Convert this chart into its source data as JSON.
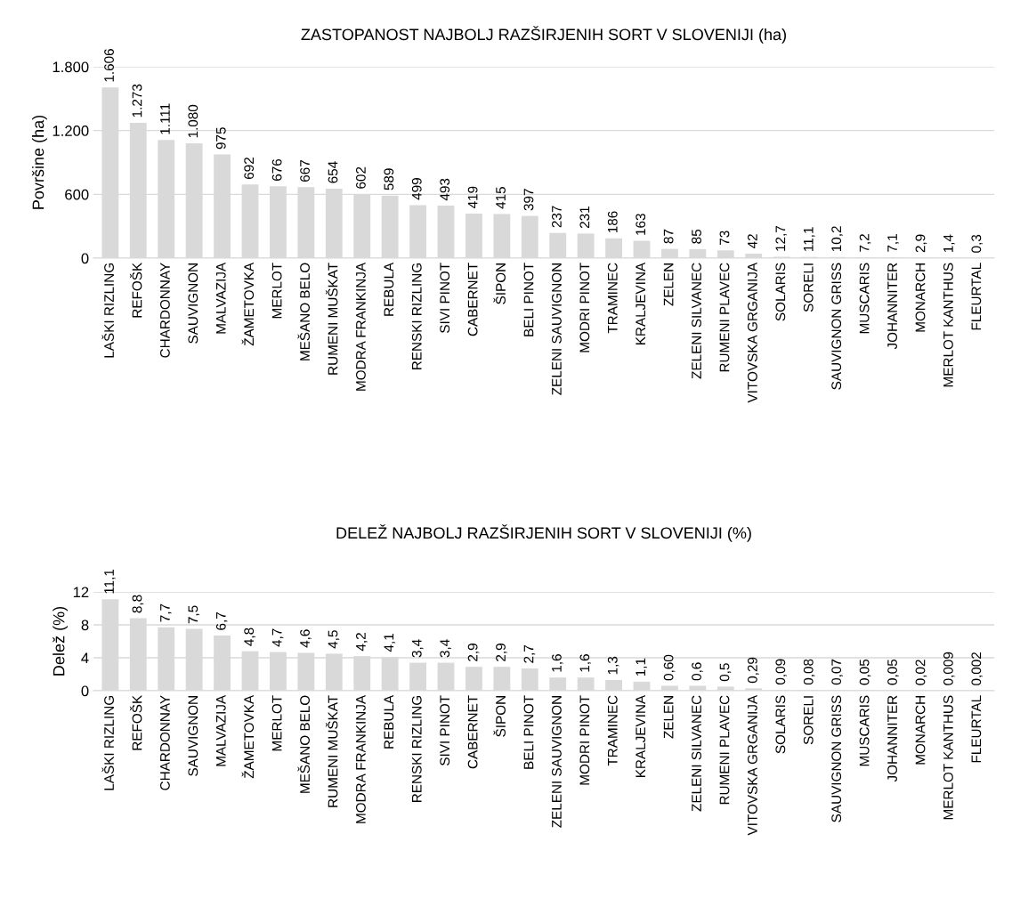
{
  "chart_data": [
    {
      "type": "bar",
      "title": "ZASTOPANOST NAJBOLJ RAZŠIRJENIH SORT V SLOVENIJI (ha)",
      "ylabel": "Površine (ha)",
      "categories": [
        "LAŠKI RIZLING",
        "REFOŠK",
        "CHARDONNAY",
        "SAUVIGNON",
        "MALVAZIJA",
        "ŽAMETOVKA",
        "MERLOT",
        "MEŠANO BELO",
        "RUMENI MUŠKAT",
        "MODRA FRANKINJA",
        "REBULA",
        "RENSKI RIZLING",
        "SIVI PINOT",
        "CABERNET",
        "ŠIPON",
        "BELI PINOT",
        "ZELENI SAUVIGNON",
        "MODRI PINOT",
        "TRAMINEC",
        "KRALJEVINA",
        "ZELEN",
        "ZELENI SILVANEC",
        "RUMENI PLAVEC",
        "VITOVSKA GRGANIJA",
        "SOLARIS",
        "SORELI",
        "SAUVIGNON GRISS",
        "MUSCARIS",
        "JOHANNITER",
        "MONARCH",
        "MERLOT KANTHUS",
        "FLEURTAL"
      ],
      "values": [
        1606,
        1273,
        1111,
        1080,
        975,
        692,
        676,
        667,
        654,
        602,
        589,
        499,
        493,
        419,
        415,
        397,
        237,
        231,
        186,
        163,
        87,
        85,
        73,
        42,
        12.7,
        11.1,
        10.2,
        7.2,
        7.1,
        2.9,
        1.4,
        0.3
      ],
      "value_labels": [
        "1.606",
        "1.273",
        "1.111",
        "1.080",
        "975",
        "692",
        "676",
        "667",
        "654",
        "602",
        "589",
        "499",
        "493",
        "419",
        "415",
        "397",
        "237",
        "231",
        "186",
        "163",
        "87",
        "85",
        "73",
        "42",
        "12,7",
        "11,1",
        "10,2",
        "7,2",
        "7,1",
        "2,9",
        "1,4",
        "0,3"
      ],
      "color": "#d9d9d9",
      "ylim": [
        0,
        1800
      ],
      "yticks": [
        0,
        600,
        {
          "value": 1200,
          "label": "1.200"
        },
        {
          "value": 1800,
          "label": "1.800"
        }
      ],
      "grid": "y"
    },
    {
      "type": "bar",
      "title": "DELEŽ NAJBOLJ RAZŠIRJENIH SORT V SLOVENIJI (%)",
      "ylabel": "Delež (%)",
      "categories": [
        "LAŠKI RIZLING",
        "REFOŠK",
        "CHARDONNAY",
        "SAUVIGNON",
        "MALVAZIJA",
        "ŽAMETOVKA",
        "MERLOT",
        "MEŠANO BELO",
        "RUMENI MUŠKAT",
        "MODRA FRANKINJA",
        "REBULA",
        "RENSKI RIZLING",
        "SIVI PINOT",
        "CABERNET",
        "ŠIPON",
        "BELI PINOT",
        "ZELENI SAUVIGNON",
        "MODRI PINOT",
        "TRAMINEC",
        "KRALJEVINA",
        "ZELEN",
        "ZELENI SILVANEC",
        "RUMENI PLAVEC",
        "VITOVSKA GRGANIJA",
        "SOLARIS",
        "SORELI",
        "SAUVIGNON GRISS",
        "MUSCARIS",
        "JOHANNITER",
        "MONARCH",
        "MERLOT KANTHUS",
        "FLEURTAL"
      ],
      "values": [
        11.1,
        8.8,
        7.7,
        7.5,
        6.7,
        4.8,
        4.7,
        4.6,
        4.5,
        4.2,
        4.1,
        3.4,
        3.4,
        2.9,
        2.9,
        2.7,
        1.6,
        1.6,
        1.3,
        1.1,
        0.6,
        0.6,
        0.5,
        0.29,
        0.09,
        0.08,
        0.07,
        0.05,
        0.05,
        0.02,
        0.009,
        0.002
      ],
      "value_labels": [
        "11,1",
        "8,8",
        "7,7",
        "7,5",
        "6,7",
        "4,8",
        "4,7",
        "4,6",
        "4,5",
        "4,2",
        "4,1",
        "3,4",
        "3,4",
        "2,9",
        "2,9",
        "2,7",
        "1,6",
        "1,6",
        "1,3",
        "1,1",
        "0,60",
        "0,6",
        "0,5",
        "0,29",
        "0,09",
        "0,08",
        "0,07",
        "0,05",
        "0,05",
        "0,02",
        "0,009",
        "0,002"
      ],
      "color": "#d9d9d9",
      "ylim": [
        0,
        12
      ],
      "yticks": [
        0,
        4,
        8,
        12
      ],
      "grid": "y"
    }
  ]
}
